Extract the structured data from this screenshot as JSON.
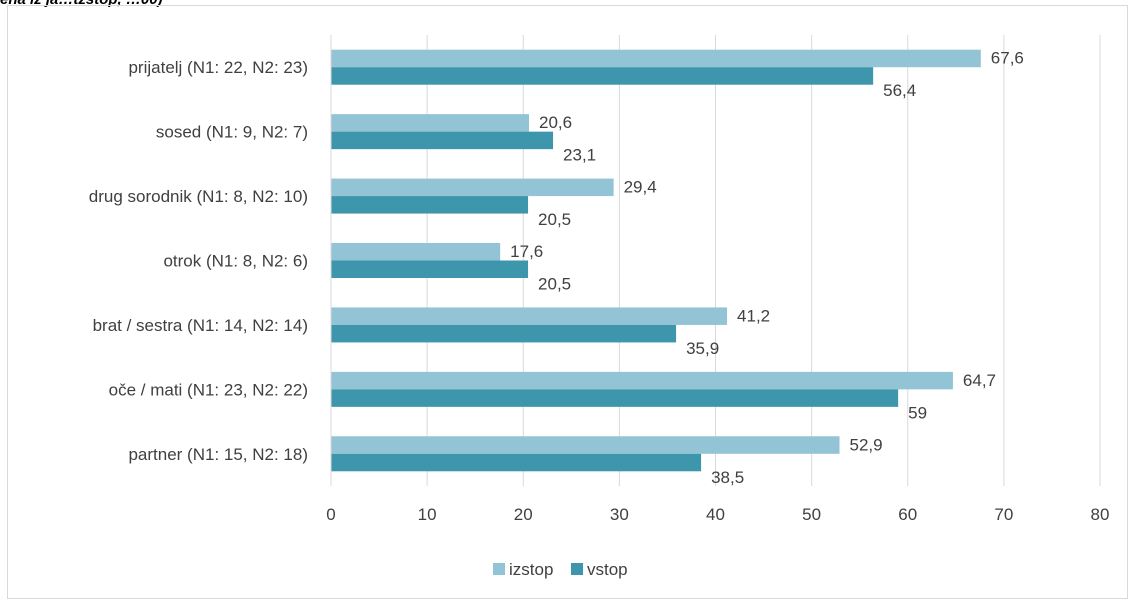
{
  "header_fragment": "ena iz ja…tzstop, …00)",
  "chart_data": {
    "type": "bar",
    "orientation": "horizontal",
    "categories": [
      "prijatelj (N1: 22, N2: 23)",
      "sosed (N1: 9, N2: 7)",
      "drug sorodnik (N1: 8, N2: 10)",
      "otrok (N1: 8, N2: 6)",
      "brat / sestra (N1: 14, N2: 14)",
      "oče / mati (N1: 23, N2: 22)",
      "partner (N1: 15, N2: 18)"
    ],
    "series": [
      {
        "name": "izstop",
        "color": "#92c4d6",
        "values": [
          67.6,
          20.6,
          29.4,
          17.6,
          41.2,
          64.7,
          52.9
        ],
        "labels": [
          "67,6",
          "20,6",
          "29,4",
          "17,6",
          "41,2",
          "64,7",
          "52,9"
        ]
      },
      {
        "name": "vstop",
        "color": "#3e96ad",
        "values": [
          56.4,
          23.1,
          20.5,
          20.5,
          35.9,
          59,
          38.5
        ],
        "labels": [
          "56,4",
          "23,1",
          "20,5",
          "20,5",
          "35,9",
          "59",
          "38,5"
        ]
      }
    ],
    "xlim": [
      0,
      80
    ],
    "ticks": [
      0,
      10,
      20,
      30,
      40,
      50,
      60,
      70,
      80
    ],
    "tick_labels": [
      "0",
      "10",
      "20",
      "30",
      "40",
      "50",
      "60",
      "70",
      "80"
    ],
    "grid": "vertical",
    "legend": "bottom",
    "title": "",
    "xlabel": "",
    "ylabel": ""
  }
}
